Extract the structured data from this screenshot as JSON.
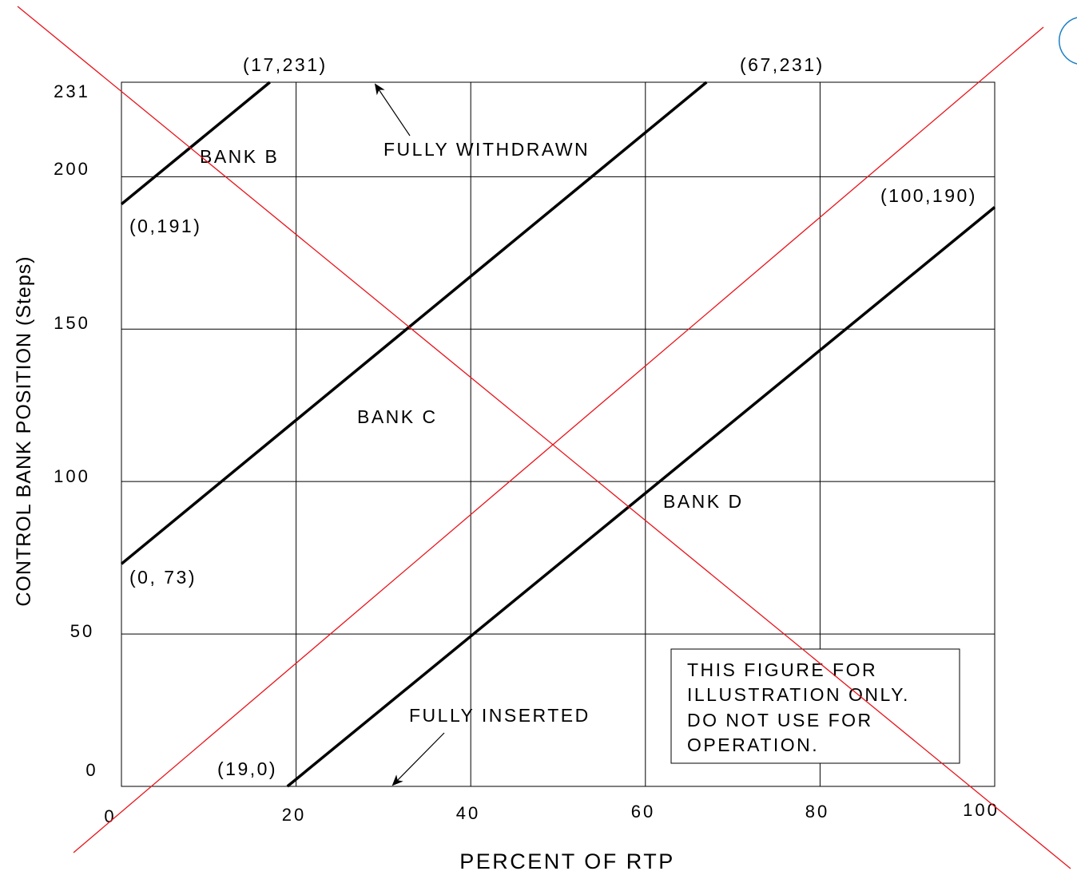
{
  "chart_data": {
    "type": "line",
    "xlabel": "PERCENT OF RTP",
    "ylabel": "CONTROL BANK POSITION (Steps)",
    "xlim": [
      0,
      100
    ],
    "ylim": [
      0,
      231
    ],
    "x_ticks": [
      "0",
      "20",
      "40",
      "60",
      "80",
      "100"
    ],
    "y_ticks": [
      "0",
      "50",
      "100",
      "150",
      "200",
      "231"
    ],
    "grid": true,
    "series": [
      {
        "name": "BANK B",
        "x": [
          0,
          17
        ],
        "y": [
          191,
          231
        ]
      },
      {
        "name": "BANK C",
        "x": [
          0,
          67
        ],
        "y": [
          73,
          231
        ]
      },
      {
        "name": "BANK D",
        "x": [
          19,
          100
        ],
        "y": [
          0,
          190
        ]
      }
    ],
    "point_labels": [
      {
        "text": "(17,231)",
        "x": 17,
        "y": 231
      },
      {
        "text": "(0,191)",
        "x": 0,
        "y": 191
      },
      {
        "text": "(67,231)",
        "x": 67,
        "y": 231
      },
      {
        "text": "(0, 73)",
        "x": 0,
        "y": 73
      },
      {
        "text": "(100,190)",
        "x": 100,
        "y": 190
      },
      {
        "text": "(19,0)",
        "x": 19,
        "y": 0
      }
    ],
    "annotations": [
      {
        "text": "FULLY WITHDRAWN",
        "arrow_to": [
          29,
          231
        ]
      },
      {
        "text": "FULLY INSERTED",
        "arrow_to": [
          31,
          0
        ]
      }
    ],
    "note_box": [
      "THIS FIGURE FOR",
      "ILLUSTRATION ONLY.",
      "DO NOT USE FOR",
      "OPERATION."
    ],
    "colors": {
      "series": "#000000",
      "grid": "#000000",
      "cross_out": "#e8141b",
      "corner_circle": "#1a7fc4"
    }
  }
}
